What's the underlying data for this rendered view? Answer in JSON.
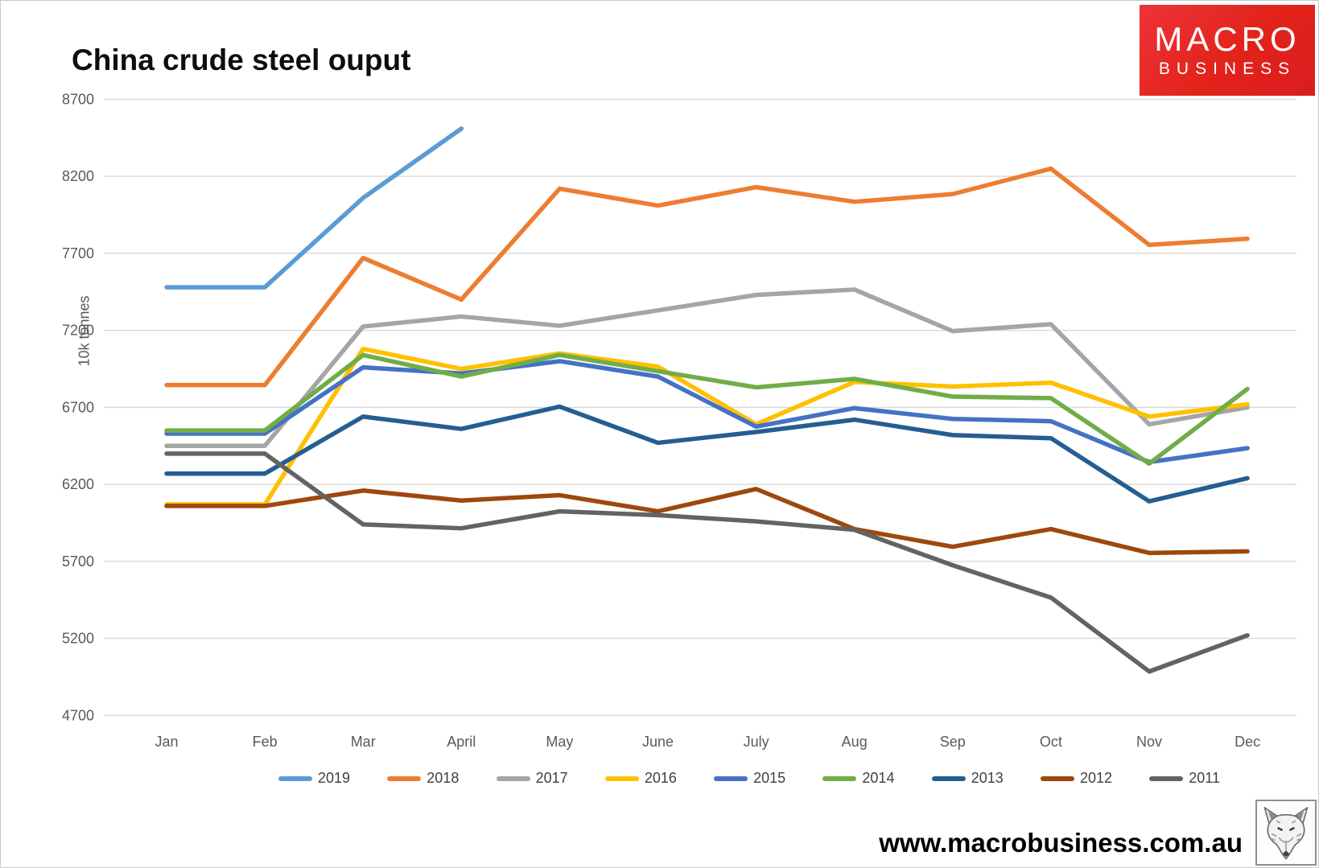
{
  "page": {
    "title": "China crude steel ouput",
    "footer_url": "www.macrobusiness.com.au"
  },
  "logo": {
    "line1": "MACRO",
    "line2": "BUSINESS",
    "bg_color": "#e2231a"
  },
  "chart_data": {
    "type": "line",
    "title": "China crude steel ouput",
    "xlabel": "",
    "ylabel": "10k tonnes",
    "ylim": [
      4700,
      8700
    ],
    "yticks": [
      8700,
      8200,
      7700,
      7200,
      6700,
      6200,
      5700,
      5200,
      4700
    ],
    "grid": true,
    "gridline_color": "#d9d9d9",
    "legend_position": "bottom",
    "categories": [
      "Jan",
      "Feb",
      "Mar",
      "April",
      "May",
      "June",
      "July",
      "Aug",
      "Sep",
      "Oct",
      "Nov",
      "Dec"
    ],
    "series": [
      {
        "name": "2019",
        "color": "#5B9BD5",
        "values": [
          7480,
          7480,
          8060,
          8510,
          null,
          null,
          null,
          null,
          null,
          null,
          null,
          null
        ]
      },
      {
        "name": "2018",
        "color": "#ED7D31",
        "values": [
          6845,
          6845,
          7670,
          7400,
          8120,
          8010,
          8130,
          8035,
          8085,
          8250,
          7755,
          7795
        ]
      },
      {
        "name": "2017",
        "color": "#A5A5A5",
        "values": [
          6450,
          6450,
          7225,
          7290,
          7230,
          7330,
          7430,
          7465,
          7195,
          7240,
          6590,
          6700
        ]
      },
      {
        "name": "2016",
        "color": "#FFC000",
        "values": [
          6070,
          6070,
          7080,
          6950,
          7050,
          6965,
          6590,
          6865,
          6835,
          6860,
          6640,
          6720
        ]
      },
      {
        "name": "2015",
        "color": "#4472C4",
        "values": [
          6530,
          6530,
          6960,
          6920,
          7000,
          6900,
          6575,
          6695,
          6625,
          6610,
          6345,
          6435
        ]
      },
      {
        "name": "2014",
        "color": "#70AD47",
        "values": [
          6550,
          6550,
          7040,
          6900,
          7040,
          6935,
          6830,
          6885,
          6770,
          6760,
          6335,
          6820
        ]
      },
      {
        "name": "2013",
        "color": "#255E91",
        "values": [
          6270,
          6270,
          6640,
          6560,
          6705,
          6470,
          6540,
          6620,
          6520,
          6500,
          6090,
          6240
        ]
      },
      {
        "name": "2012",
        "color": "#9E480E",
        "values": [
          6060,
          6060,
          6160,
          6095,
          6130,
          6025,
          6170,
          5910,
          5795,
          5910,
          5755,
          5765
        ]
      },
      {
        "name": "2011",
        "color": "#636363",
        "values": [
          6400,
          6400,
          5940,
          5915,
          6025,
          6000,
          5960,
          5905,
          5675,
          5465,
          4985,
          5220
        ]
      }
    ]
  }
}
